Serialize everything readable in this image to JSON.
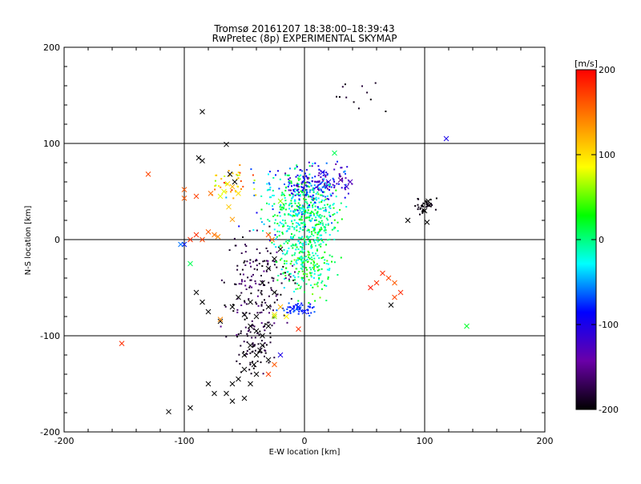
{
  "chart_data": {
    "type": "scatter",
    "title": "Tromsø 20161207 18:38:00–18:39:43",
    "subtitle": "RwPretec (8p) EXPERIMENTAL SKYMAP",
    "xlabel": "E-W location [km]",
    "ylabel": "N-S location [km]",
    "xlim": [
      -200,
      200
    ],
    "ylim": [
      -200,
      200
    ],
    "xticks": [
      "-200",
      "-100",
      "0",
      "100",
      "200"
    ],
    "yticks": [
      "-200",
      "-100",
      "0",
      "100",
      "200"
    ],
    "grid": true,
    "colorbar": {
      "label": "[m/s]",
      "range": [
        -200,
        200
      ],
      "ticks": [
        "200",
        "100",
        "0",
        "-100",
        "-200"
      ],
      "colormap": [
        "#000000",
        "#6a00a8",
        "#0000ff",
        "#00ffff",
        "#00ff00",
        "#ffff00",
        "#ff8000",
        "#ff0000"
      ]
    },
    "markers": {
      "dot": "detection (dot)",
      "cross": "detection (x)"
    },
    "series_x_markers": [
      [
        -85,
        133,
        -200
      ],
      [
        -65,
        99,
        -200
      ],
      [
        -88,
        85,
        -200
      ],
      [
        -85,
        82,
        -200
      ],
      [
        -62,
        68,
        -200
      ],
      [
        -58,
        60,
        -200
      ],
      [
        -100,
        52,
        160
      ],
      [
        -100,
        43,
        160
      ],
      [
        -90,
        45,
        170
      ],
      [
        -78,
        48,
        150
      ],
      [
        -60,
        55,
        120
      ],
      [
        -55,
        48,
        100
      ],
      [
        -70,
        45,
        80
      ],
      [
        -130,
        68,
        170
      ],
      [
        -90,
        5,
        180
      ],
      [
        -85,
        0,
        170
      ],
      [
        -80,
        8,
        160
      ],
      [
        -75,
        5,
        150
      ],
      [
        -72,
        3,
        140
      ],
      [
        -95,
        0,
        180
      ],
      [
        -100,
        -5,
        -80
      ],
      [
        -95,
        -25,
        10
      ],
      [
        -90,
        -55,
        -200
      ],
      [
        -85,
        -65,
        -200
      ],
      [
        -80,
        -75,
        -200
      ],
      [
        -70,
        -85,
        -200
      ],
      [
        -60,
        -70,
        -200
      ],
      [
        -55,
        -60,
        -200
      ],
      [
        -50,
        -78,
        -200
      ],
      [
        -45,
        -65,
        -200
      ],
      [
        -45,
        -90,
        -200
      ],
      [
        -40,
        -80,
        -200
      ],
      [
        -40,
        -95,
        -200
      ],
      [
        -35,
        -100,
        -200
      ],
      [
        -45,
        -110,
        -200
      ],
      [
        -50,
        -120,
        -200
      ],
      [
        -40,
        -120,
        -200
      ],
      [
        -35,
        -110,
        -200
      ],
      [
        -30,
        -90,
        -200
      ],
      [
        -30,
        -70,
        -200
      ],
      [
        -25,
        -55,
        -200
      ],
      [
        -35,
        -45,
        -200
      ],
      [
        -30,
        -30,
        -200
      ],
      [
        -25,
        -20,
        -200
      ],
      [
        -20,
        -10,
        -200
      ],
      [
        -50,
        -135,
        -200
      ],
      [
        -55,
        -145,
        -200
      ],
      [
        -45,
        -150,
        -200
      ],
      [
        -40,
        -140,
        -200
      ],
      [
        -30,
        -125,
        -200
      ],
      [
        -60,
        -150,
        -200
      ],
      [
        -65,
        -160,
        -200
      ],
      [
        -80,
        -150,
        -200
      ],
      [
        -75,
        -160,
        -200
      ],
      [
        -60,
        -168,
        -200
      ],
      [
        -50,
        -165,
        -200
      ],
      [
        -95,
        -175,
        -200
      ],
      [
        -113,
        -179,
        -200
      ],
      [
        -42,
        -130,
        -200
      ],
      [
        -37,
        -115,
        -200
      ],
      [
        -20,
        -70,
        120
      ],
      [
        -15,
        -80,
        90
      ],
      [
        -10,
        -72,
        -80
      ],
      [
        -5,
        -70,
        -80
      ],
      [
        0,
        -75,
        -80
      ],
      [
        -25,
        -80,
        60
      ],
      [
        -20,
        -120,
        -100
      ],
      [
        -25,
        -130,
        160
      ],
      [
        -30,
        -140,
        170
      ],
      [
        -5,
        -93,
        180
      ],
      [
        65,
        -35,
        180
      ],
      [
        70,
        -40,
        170
      ],
      [
        75,
        -45,
        160
      ],
      [
        60,
        -45,
        180
      ],
      [
        55,
        -50,
        190
      ],
      [
        75,
        -60,
        170
      ],
      [
        72,
        -68,
        -200
      ],
      [
        80,
        -55,
        180
      ],
      [
        135,
        -90,
        20
      ],
      [
        118,
        105,
        -100
      ],
      [
        -152,
        -108,
        180
      ],
      [
        -70,
        -83,
        140
      ],
      [
        -25,
        -78,
        100
      ],
      [
        -20,
        40,
        60
      ],
      [
        20,
        60,
        -100
      ],
      [
        30,
        62,
        -150
      ],
      [
        35,
        55,
        -120
      ],
      [
        38,
        60,
        -130
      ],
      [
        15,
        70,
        -100
      ],
      [
        25,
        90,
        10
      ],
      [
        103,
        40,
        -200
      ],
      [
        100,
        30,
        -200
      ],
      [
        102,
        18,
        -200
      ],
      [
        86,
        20,
        -200
      ],
      [
        -67,
        50,
        80
      ],
      [
        -64,
        58,
        100
      ],
      [
        -103,
        -5,
        -60
      ],
      [
        -30,
        5,
        160
      ],
      [
        -27,
        0,
        150
      ],
      [
        -63,
        34,
        110
      ],
      [
        -60,
        21,
        130
      ]
    ],
    "series_dot_clusters": [
      {
        "center": [
          0,
          20
        ],
        "spread": [
          20,
          35
        ],
        "count": 460,
        "value_range": [
          -40,
          40
        ]
      },
      {
        "center": [
          10,
          60
        ],
        "spread": [
          20,
          12
        ],
        "count": 150,
        "value_range": [
          -150,
          -60
        ]
      },
      {
        "center": [
          0,
          -30
        ],
        "spread": [
          15,
          20
        ],
        "count": 160,
        "value_range": [
          -40,
          60
        ]
      },
      {
        "center": [
          -40,
          -40
        ],
        "spread": [
          20,
          40
        ],
        "count": 140,
        "value_range": [
          -200,
          -150
        ]
      },
      {
        "center": [
          -40,
          -100
        ],
        "spread": [
          12,
          30
        ],
        "count": 90,
        "value_range": [
          -200,
          -170
        ]
      },
      {
        "center": [
          -10,
          40
        ],
        "spread": [
          30,
          25
        ],
        "count": 120,
        "value_range": [
          -100,
          20
        ]
      },
      {
        "center": [
          100,
          35
        ],
        "spread": [
          6,
          6
        ],
        "count": 40,
        "value_range": [
          -200,
          -190
        ]
      },
      {
        "center": [
          -5,
          -72
        ],
        "spread": [
          10,
          5
        ],
        "count": 50,
        "value_range": [
          -90,
          -60
        ]
      },
      {
        "center": [
          -60,
          60
        ],
        "spread": [
          15,
          12
        ],
        "count": 40,
        "value_range": [
          60,
          180
        ]
      },
      {
        "center": [
          40,
          150
        ],
        "spread": [
          25,
          20
        ],
        "count": 12,
        "value_range": [
          -200,
          -180
        ]
      }
    ]
  }
}
